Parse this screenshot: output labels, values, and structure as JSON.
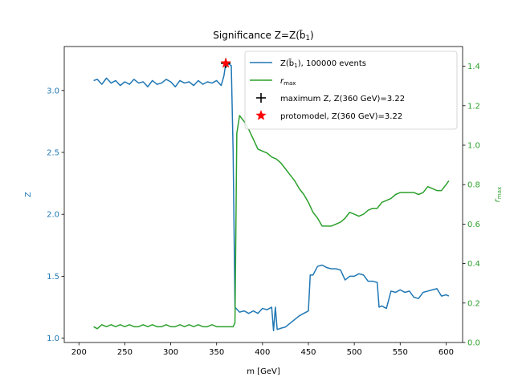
{
  "chart_data": {
    "type": "line",
    "title": "Significance Z=Z(b̃₁)",
    "xlabel": "m [GeV]",
    "ylabel_left": "Z",
    "ylabel_right": "r_max",
    "xlim": [
      184,
      618
    ],
    "ylim_left": [
      0.965,
      3.355
    ],
    "ylim_right": [
      0.0,
      1.5
    ],
    "x_ticks": [
      200,
      250,
      300,
      350,
      400,
      450,
      500,
      550,
      600
    ],
    "y_left_ticks": [
      1.0,
      1.5,
      2.0,
      2.5,
      3.0
    ],
    "y_right_ticks": [
      0.0,
      0.2,
      0.4,
      0.6,
      0.8,
      1.0,
      1.2,
      1.4
    ],
    "grid": false,
    "legend_position": "upper-right",
    "colors": {
      "z": "#1f77b4",
      "rmax": "#2ca02c",
      "max_marker": "#000000",
      "protomodel": "#ff0000"
    },
    "series": [
      {
        "name": "Z(b̃₁), 100000 events",
        "axis": "left",
        "x": [
          216,
          220,
          225,
          230,
          235,
          240,
          245,
          250,
          255,
          260,
          265,
          270,
          275,
          280,
          285,
          290,
          295,
          300,
          305,
          310,
          315,
          320,
          325,
          330,
          335,
          340,
          345,
          350,
          355,
          358,
          360,
          364,
          366,
          368,
          370,
          375,
          380,
          385,
          390,
          395,
          400,
          405,
          410,
          412,
          414,
          416,
          420,
          425,
          430,
          435,
          440,
          445,
          450,
          452,
          455,
          460,
          465,
          470,
          475,
          480,
          485,
          490,
          495,
          500,
          505,
          510,
          515,
          520,
          525,
          527,
          530,
          535,
          540,
          545,
          550,
          555,
          560,
          565,
          570,
          575,
          580,
          585,
          590,
          595,
          600,
          603
        ],
        "y": [
          3.08,
          3.09,
          3.05,
          3.1,
          3.06,
          3.08,
          3.04,
          3.07,
          3.05,
          3.09,
          3.06,
          3.07,
          3.03,
          3.08,
          3.05,
          3.06,
          3.09,
          3.07,
          3.03,
          3.08,
          3.06,
          3.07,
          3.04,
          3.08,
          3.05,
          3.07,
          3.06,
          3.08,
          3.04,
          3.12,
          3.22,
          3.21,
          3.2,
          2.5,
          1.25,
          1.21,
          1.22,
          1.2,
          1.22,
          1.2,
          1.24,
          1.23,
          1.25,
          1.06,
          1.25,
          1.07,
          1.08,
          1.09,
          1.12,
          1.15,
          1.18,
          1.2,
          1.22,
          1.51,
          1.51,
          1.58,
          1.59,
          1.57,
          1.56,
          1.56,
          1.55,
          1.47,
          1.5,
          1.5,
          1.52,
          1.51,
          1.46,
          1.46,
          1.45,
          1.25,
          1.26,
          1.24,
          1.38,
          1.37,
          1.39,
          1.37,
          1.38,
          1.33,
          1.32,
          1.37,
          1.38,
          1.39,
          1.4,
          1.34,
          1.35,
          1.34
        ]
      },
      {
        "name": "r_max",
        "axis": "right",
        "x": [
          216,
          220,
          225,
          230,
          235,
          240,
          245,
          250,
          255,
          260,
          265,
          270,
          275,
          280,
          285,
          290,
          295,
          300,
          305,
          310,
          315,
          320,
          325,
          330,
          335,
          340,
          345,
          350,
          355,
          360,
          365,
          368,
          370,
          372,
          375,
          380,
          385,
          390,
          395,
          400,
          405,
          410,
          415,
          420,
          425,
          430,
          435,
          440,
          445,
          450,
          455,
          460,
          465,
          470,
          475,
          480,
          485,
          490,
          495,
          500,
          505,
          510,
          515,
          520,
          525,
          530,
          535,
          540,
          545,
          550,
          555,
          560,
          565,
          570,
          575,
          580,
          585,
          590,
          595,
          600,
          603
        ],
        "y": [
          0.08,
          0.07,
          0.09,
          0.08,
          0.09,
          0.08,
          0.09,
          0.08,
          0.09,
          0.08,
          0.08,
          0.09,
          0.08,
          0.09,
          0.08,
          0.08,
          0.09,
          0.08,
          0.08,
          0.09,
          0.08,
          0.09,
          0.08,
          0.09,
          0.08,
          0.08,
          0.09,
          0.08,
          0.08,
          0.08,
          0.08,
          0.08,
          0.1,
          1.06,
          1.15,
          1.12,
          1.08,
          1.03,
          0.98,
          0.97,
          0.96,
          0.94,
          0.93,
          0.91,
          0.88,
          0.85,
          0.82,
          0.78,
          0.75,
          0.71,
          0.66,
          0.63,
          0.59,
          0.59,
          0.59,
          0.6,
          0.61,
          0.63,
          0.66,
          0.65,
          0.64,
          0.65,
          0.67,
          0.68,
          0.68,
          0.71,
          0.72,
          0.73,
          0.75,
          0.76,
          0.76,
          0.76,
          0.76,
          0.75,
          0.76,
          0.79,
          0.78,
          0.77,
          0.77,
          0.8,
          0.82
        ]
      }
    ],
    "markers": [
      {
        "name": "maximum Z, Z(360 GeV)=3.22",
        "x": 360,
        "y": 3.22,
        "symbol": "plus"
      },
      {
        "name": "protomodel, Z(360 GeV)=3.22",
        "x": 360,
        "y": 3.22,
        "symbol": "star"
      }
    ],
    "legend": [
      {
        "label": "Z(b̃₁), 100000 events",
        "kind": "line",
        "color": "#1f77b4"
      },
      {
        "label": "r_max",
        "kind": "line",
        "color": "#2ca02c"
      },
      {
        "label": "maximum Z, Z(360 GeV)=3.22",
        "kind": "plus",
        "color": "#000000"
      },
      {
        "label": "protomodel, Z(360 GeV)=3.22",
        "kind": "star",
        "color": "#ff0000"
      }
    ]
  }
}
